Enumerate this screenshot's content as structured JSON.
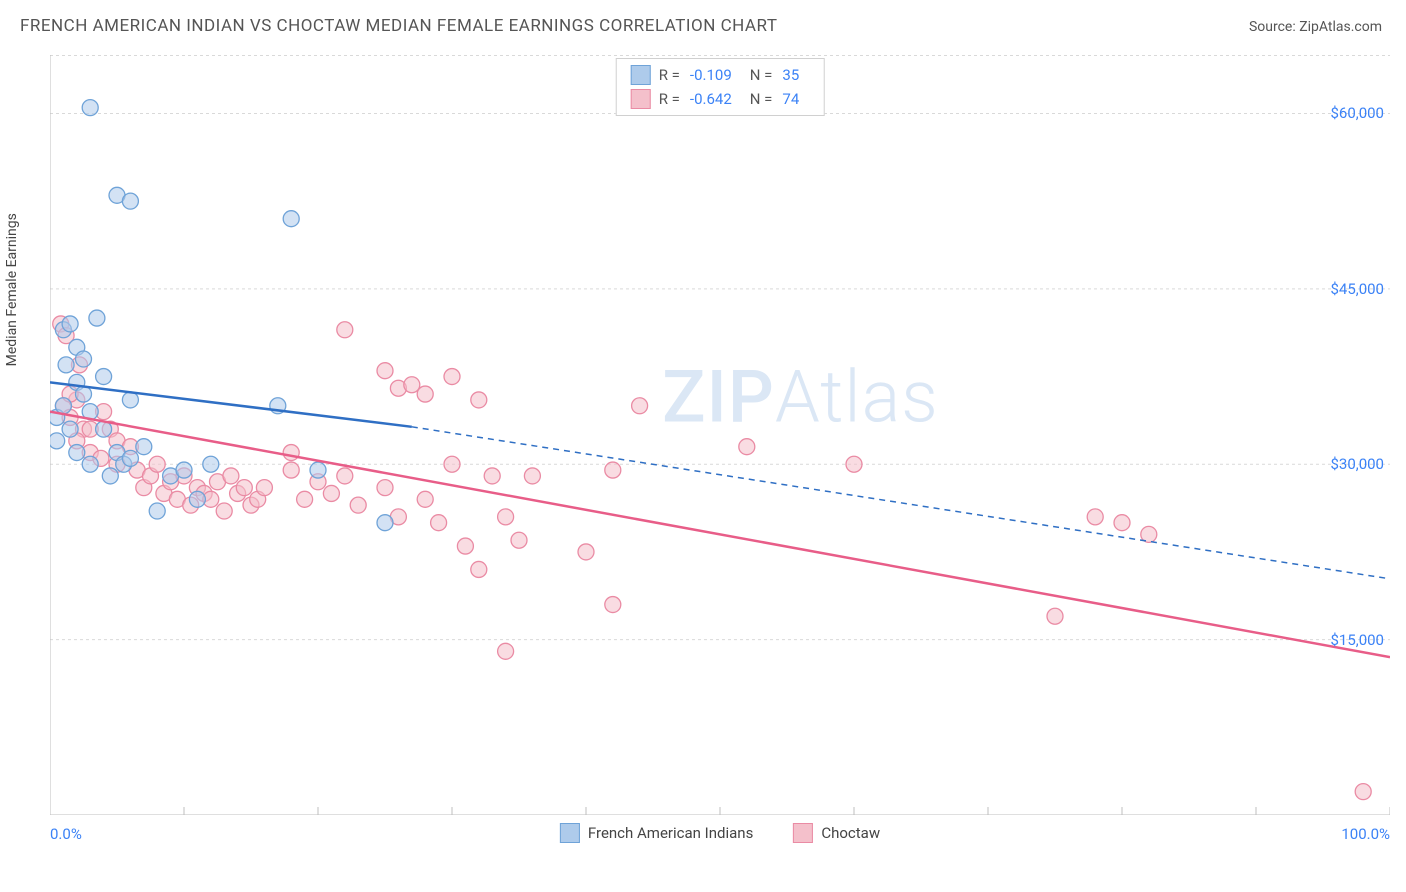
{
  "title": "FRENCH AMERICAN INDIAN VS CHOCTAW MEDIAN FEMALE EARNINGS CORRELATION CHART",
  "source": "Source: ZipAtlas.com",
  "ylabel": "Median Female Earnings",
  "watermark": {
    "zip": "ZIP",
    "atlas": "Atlas"
  },
  "chart": {
    "type": "scatter",
    "xlim": [
      0,
      100
    ],
    "ylim": [
      0,
      65000
    ],
    "x_ticks_minor_step": 20,
    "y_grid": [
      15000,
      30000,
      45000,
      60000,
      65000
    ],
    "y_tick_labels": {
      "15000": "$15,000",
      "30000": "$30,000",
      "45000": "$45,000",
      "60000": "$60,000"
    },
    "x_tick_labels": {
      "left": "0.0%",
      "right": "100.0%"
    },
    "grid_color": "#d9d9d9",
    "axis_color": "#bfbfbf",
    "background_color": "#ffffff",
    "marker_radius": 8,
    "marker_stroke_width": 1.3,
    "line_width_solid": 2.5,
    "line_width_dash": 1.5,
    "dash_pattern": "6,5"
  },
  "series": [
    {
      "name": "French American Indians",
      "fill": "#aecbeb",
      "stroke": "#6fa3d8",
      "R": "-0.109",
      "N": "35",
      "trend": {
        "solid": {
          "x1": 0,
          "y1": 37000,
          "x2": 27,
          "y2": 33200
        },
        "dash": {
          "x1": 27,
          "y1": 33200,
          "x2": 100,
          "y2": 20200
        }
      },
      "points": [
        [
          1,
          41500
        ],
        [
          1.5,
          42000
        ],
        [
          2,
          40000
        ],
        [
          2,
          37000
        ],
        [
          2.5,
          36000
        ],
        [
          0.5,
          34000
        ],
        [
          1,
          35000
        ],
        [
          1.5,
          33000
        ],
        [
          0.5,
          32000
        ],
        [
          2,
          31000
        ],
        [
          3,
          30000
        ],
        [
          3.5,
          42500
        ],
        [
          4,
          37500
        ],
        [
          4.5,
          29000
        ],
        [
          5,
          31000
        ],
        [
          5.5,
          30000
        ],
        [
          3,
          34500
        ],
        [
          6,
          35500
        ],
        [
          7,
          31500
        ],
        [
          5,
          53000
        ],
        [
          6,
          52500
        ],
        [
          3,
          60500
        ],
        [
          8,
          26000
        ],
        [
          9,
          29000
        ],
        [
          10,
          29500
        ],
        [
          11,
          27000
        ],
        [
          12,
          30000
        ],
        [
          17,
          35000
        ],
        [
          18,
          51000
        ],
        [
          20,
          29500
        ],
        [
          25,
          25000
        ],
        [
          2.5,
          39000
        ],
        [
          4,
          33000
        ],
        [
          6,
          30500
        ],
        [
          1.2,
          38500
        ]
      ]
    },
    {
      "name": "Choctaw",
      "fill": "#f4c0cb",
      "stroke": "#ea8ba4",
      "R": "-0.642",
      "N": "74",
      "trend": {
        "solid": {
          "x1": 0,
          "y1": 34500,
          "x2": 100,
          "y2": 13500
        },
        "dash": null
      },
      "points": [
        [
          1,
          35000
        ],
        [
          1.5,
          34000
        ],
        [
          2,
          35500
        ],
        [
          2.5,
          33000
        ],
        [
          0.8,
          42000
        ],
        [
          1.2,
          41000
        ],
        [
          2,
          32000
        ],
        [
          3,
          33000
        ],
        [
          3,
          31000
        ],
        [
          4,
          34500
        ],
        [
          4.5,
          33000
        ],
        [
          5,
          32000
        ],
        [
          5,
          30000
        ],
        [
          6,
          31500
        ],
        [
          6.5,
          29500
        ],
        [
          7,
          28000
        ],
        [
          7.5,
          29000
        ],
        [
          8,
          30000
        ],
        [
          8.5,
          27500
        ],
        [
          9,
          28500
        ],
        [
          9.5,
          27000
        ],
        [
          10,
          29000
        ],
        [
          10.5,
          26500
        ],
        [
          11,
          28000
        ],
        [
          11.5,
          27500
        ],
        [
          12,
          27000
        ],
        [
          12.5,
          28500
        ],
        [
          13,
          26000
        ],
        [
          13.5,
          29000
        ],
        [
          14,
          27500
        ],
        [
          14.5,
          28000
        ],
        [
          15,
          26500
        ],
        [
          15.5,
          27000
        ],
        [
          16,
          28000
        ],
        [
          18,
          29500
        ],
        [
          19,
          27000
        ],
        [
          20,
          28500
        ],
        [
          21,
          27500
        ],
        [
          22,
          29000
        ],
        [
          23,
          26500
        ],
        [
          25,
          28000
        ],
        [
          26,
          25500
        ],
        [
          28,
          27000
        ],
        [
          22,
          41500
        ],
        [
          25,
          38000
        ],
        [
          26,
          36500
        ],
        [
          27,
          36800
        ],
        [
          28,
          36000
        ],
        [
          18,
          31000
        ],
        [
          29,
          25000
        ],
        [
          30,
          30000
        ],
        [
          32,
          35500
        ],
        [
          31,
          23000
        ],
        [
          33,
          29000
        ],
        [
          34,
          25500
        ],
        [
          30,
          37500
        ],
        [
          32,
          21000
        ],
        [
          35,
          23500
        ],
        [
          36,
          29000
        ],
        [
          40,
          22500
        ],
        [
          42,
          29500
        ],
        [
          42,
          18000
        ],
        [
          44,
          35000
        ],
        [
          34,
          14000
        ],
        [
          52,
          31500
        ],
        [
          60,
          30000
        ],
        [
          75,
          17000
        ],
        [
          78,
          25500
        ],
        [
          80,
          25000
        ],
        [
          82,
          24000
        ],
        [
          98,
          2000
        ],
        [
          1.5,
          36000
        ],
        [
          2.2,
          38500
        ],
        [
          3.8,
          30500
        ]
      ]
    }
  ],
  "bottom_legend": [
    {
      "label": "French American Indians",
      "fill": "#aecbeb",
      "stroke": "#6fa3d8"
    },
    {
      "label": "Choctaw",
      "fill": "#f4c0cb",
      "stroke": "#ea8ba4"
    }
  ]
}
